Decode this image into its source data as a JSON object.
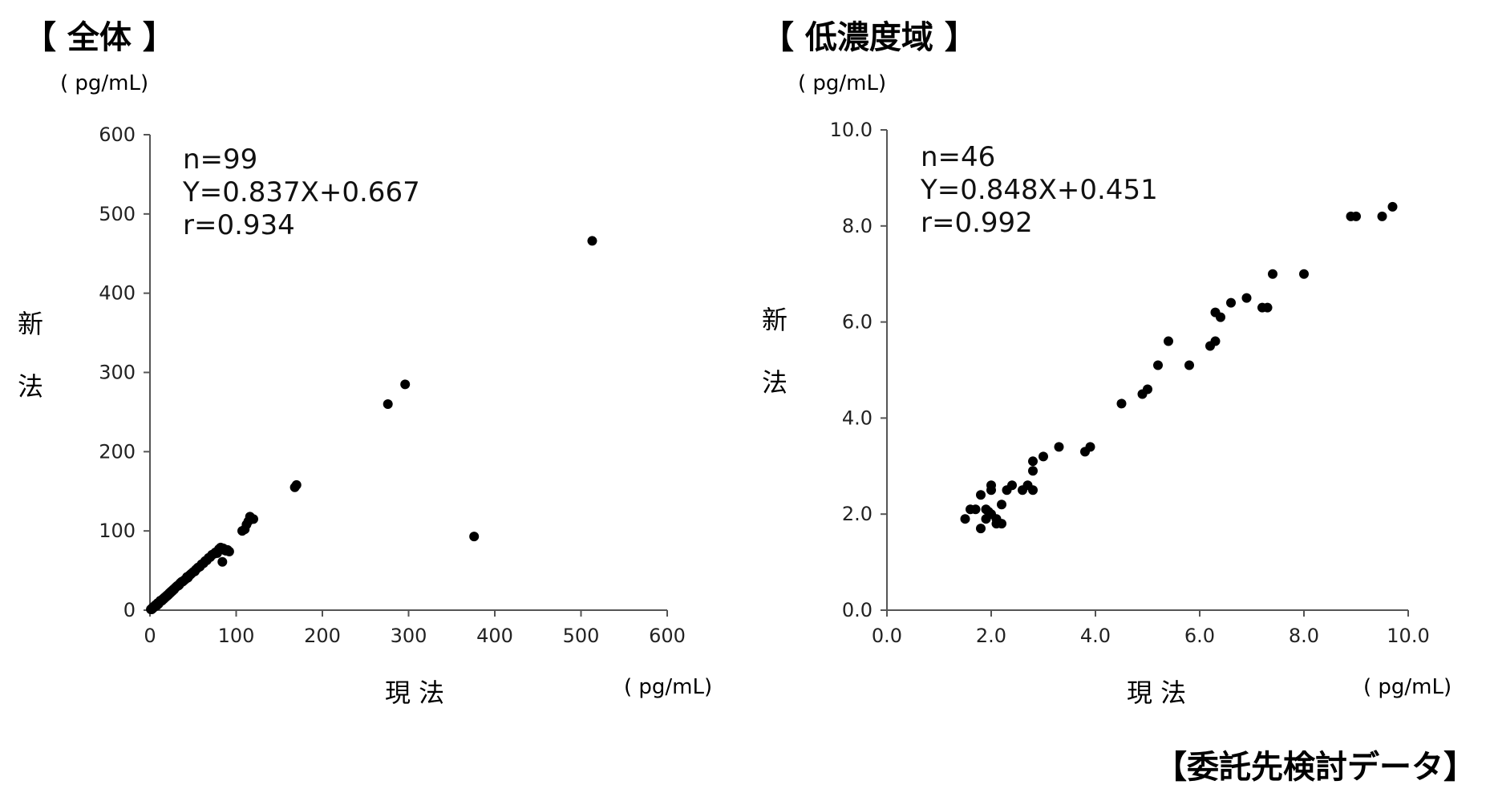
{
  "source_note": "【委託先検討データ】",
  "chart_data": [
    {
      "type": "scatter",
      "title": "【 全体 】",
      "xlabel": "現 法",
      "ylabel": "新 法",
      "xunit": "( pg/mL)",
      "yunit": "( pg/mL)",
      "xlim": [
        0,
        600
      ],
      "ylim": [
        0,
        600
      ],
      "xticks": [
        0,
        100,
        200,
        300,
        400,
        500,
        600
      ],
      "yticks": [
        0,
        100,
        200,
        300,
        400,
        500,
        600
      ],
      "grid": false,
      "annotations": [
        "n=99",
        "Y=0.837X+0.667",
        "r=0.934"
      ],
      "points": [
        [
          1,
          1
        ],
        [
          2,
          2
        ],
        [
          3,
          3
        ],
        [
          4,
          3
        ],
        [
          5,
          5
        ],
        [
          6,
          5
        ],
        [
          7,
          7
        ],
        [
          8,
          7
        ],
        [
          9,
          8
        ],
        [
          10,
          9
        ],
        [
          11,
          10
        ],
        [
          12,
          11
        ],
        [
          13,
          12
        ],
        [
          14,
          13
        ],
        [
          15,
          14
        ],
        [
          16,
          15
        ],
        [
          17,
          16
        ],
        [
          18,
          17
        ],
        [
          19,
          18
        ],
        [
          20,
          19
        ],
        [
          21,
          19
        ],
        [
          22,
          21
        ],
        [
          23,
          22
        ],
        [
          24,
          23
        ],
        [
          25,
          24
        ],
        [
          27,
          26
        ],
        [
          29,
          28
        ],
        [
          31,
          30
        ],
        [
          33,
          31
        ],
        [
          35,
          34
        ],
        [
          37,
          36
        ],
        [
          39,
          37
        ],
        [
          41,
          39
        ],
        [
          43,
          42
        ],
        [
          45,
          43
        ],
        [
          47,
          45
        ],
        [
          50,
          48
        ],
        [
          53,
          51
        ],
        [
          56,
          54
        ],
        [
          60,
          58
        ],
        [
          64,
          62
        ],
        [
          68,
          66
        ],
        [
          72,
          70
        ],
        [
          76,
          73
        ],
        [
          80,
          77
        ],
        [
          84,
          61
        ],
        [
          88,
          75
        ],
        [
          92,
          74
        ],
        [
          85,
          78
        ],
        [
          78,
          72
        ],
        [
          107,
          100
        ],
        [
          110,
          102
        ],
        [
          114,
          112
        ],
        [
          116,
          118
        ],
        [
          120,
          115
        ],
        [
          168,
          155
        ],
        [
          170,
          158
        ],
        [
          276,
          260
        ],
        [
          296,
          285
        ],
        [
          376,
          93
        ],
        [
          513,
          466
        ],
        [
          2,
          1
        ],
        [
          3,
          2
        ],
        [
          4,
          4
        ],
        [
          5,
          4
        ],
        [
          6,
          6
        ],
        [
          8,
          6
        ],
        [
          9,
          9
        ],
        [
          10,
          8
        ],
        [
          12,
          12
        ],
        [
          14,
          12
        ],
        [
          16,
          14
        ],
        [
          18,
          16
        ],
        [
          20,
          18
        ],
        [
          22,
          20
        ],
        [
          24,
          22
        ],
        [
          26,
          24
        ],
        [
          28,
          26
        ],
        [
          30,
          29
        ],
        [
          32,
          31
        ],
        [
          34,
          32
        ],
        [
          36,
          35
        ],
        [
          38,
          36
        ],
        [
          40,
          38
        ],
        [
          42,
          40
        ],
        [
          44,
          41
        ],
        [
          46,
          44
        ],
        [
          48,
          46
        ],
        [
          52,
          49
        ],
        [
          55,
          53
        ],
        [
          58,
          55
        ],
        [
          62,
          59
        ],
        [
          66,
          63
        ],
        [
          70,
          67
        ],
        [
          74,
          71
        ],
        [
          82,
          79
        ],
        [
          86,
          76
        ],
        [
          90,
          76
        ],
        [
          112,
          108
        ]
      ]
    },
    {
      "type": "scatter",
      "title": "【 低濃度域 】",
      "xlabel": "現 法",
      "ylabel": "新 法",
      "xunit": "( pg/mL)",
      "yunit": "( pg/mL)",
      "xlim": [
        0,
        10
      ],
      "ylim": [
        0,
        10
      ],
      "xticks": [
        "0.0",
        "2.0",
        "4.0",
        "6.0",
        "8.0",
        "10.0"
      ],
      "yticks": [
        "0.0",
        "2.0",
        "4.0",
        "6.0",
        "8.0",
        "10.0"
      ],
      "grid": false,
      "annotations": [
        "n=46",
        "Y=0.848X+0.451",
        "r=0.992"
      ],
      "points": [
        [
          1.5,
          1.9
        ],
        [
          1.6,
          2.1
        ],
        [
          1.7,
          2.1
        ],
        [
          1.8,
          2.4
        ],
        [
          1.8,
          1.7
        ],
        [
          1.9,
          2.1
        ],
        [
          1.9,
          1.9
        ],
        [
          2.0,
          2.5
        ],
        [
          2.0,
          2.6
        ],
        [
          2.0,
          2.0
        ],
        [
          2.1,
          1.9
        ],
        [
          2.1,
          1.8
        ],
        [
          2.2,
          1.8
        ],
        [
          2.2,
          2.2
        ],
        [
          2.3,
          2.5
        ],
        [
          2.4,
          2.6
        ],
        [
          2.6,
          2.5
        ],
        [
          2.7,
          2.6
        ],
        [
          2.8,
          2.5
        ],
        [
          2.8,
          2.9
        ],
        [
          2.8,
          3.1
        ],
        [
          3.0,
          3.2
        ],
        [
          3.3,
          3.4
        ],
        [
          3.8,
          3.3
        ],
        [
          3.9,
          3.4
        ],
        [
          4.5,
          4.3
        ],
        [
          4.9,
          4.5
        ],
        [
          5.0,
          4.6
        ],
        [
          5.2,
          5.1
        ],
        [
          5.4,
          5.6
        ],
        [
          5.8,
          5.1
        ],
        [
          6.2,
          5.5
        ],
        [
          6.3,
          5.6
        ],
        [
          6.3,
          6.2
        ],
        [
          6.4,
          6.1
        ],
        [
          6.6,
          6.4
        ],
        [
          6.9,
          6.5
        ],
        [
          7.2,
          6.3
        ],
        [
          7.3,
          6.3
        ],
        [
          7.4,
          7.0
        ],
        [
          8.0,
          7.0
        ],
        [
          8.9,
          8.2
        ],
        [
          9.0,
          8.2
        ],
        [
          9.5,
          8.2
        ],
        [
          9.7,
          8.4
        ],
        [
          1.95,
          2.05
        ]
      ]
    }
  ]
}
